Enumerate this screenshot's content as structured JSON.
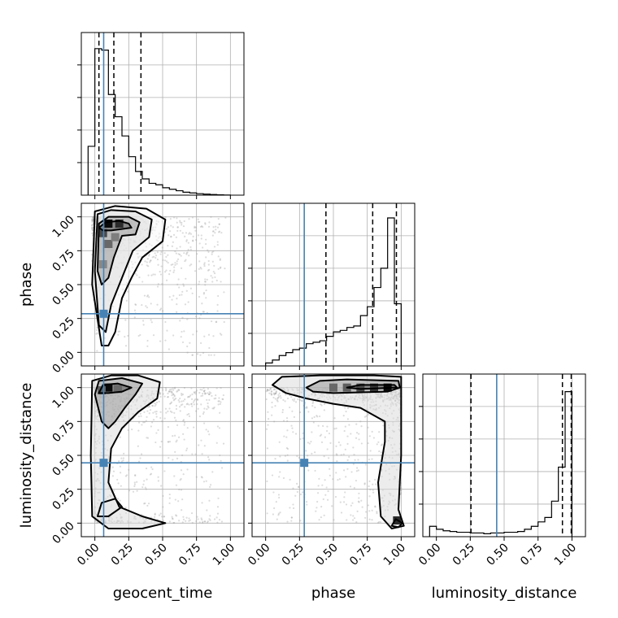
{
  "chart_data": {
    "type": "corner",
    "parameters": [
      "geocent_time",
      "phase",
      "luminosity_distance"
    ],
    "axis_range": [
      -0.1,
      1.1
    ],
    "ticks": [
      0.0,
      0.25,
      0.5,
      0.75,
      1.0
    ],
    "tick_labels": [
      "0.00",
      "0.25",
      "0.50",
      "0.75",
      "1.00"
    ],
    "grid": true,
    "colors": {
      "truth": "#4682b4",
      "line": "#000000",
      "scatter": "#9a9a9a"
    },
    "truths": {
      "geocent_time": 0.065,
      "phase": 0.285,
      "luminosity_distance": 0.445
    },
    "histograms": {
      "geocent_time": {
        "edges": [
          -0.05,
          0.0,
          0.05,
          0.1,
          0.15,
          0.2,
          0.25,
          0.3,
          0.35,
          0.4,
          0.45,
          0.5,
          0.55,
          0.6,
          0.65,
          0.7,
          0.75,
          0.8,
          0.85,
          0.9,
          0.95,
          1.0
        ],
        "heights": [
          0.33,
          0.99,
          0.98,
          0.68,
          0.53,
          0.4,
          0.26,
          0.16,
          0.11,
          0.08,
          0.07,
          0.05,
          0.04,
          0.03,
          0.02,
          0.015,
          0.01,
          0.007,
          0.004,
          0.002,
          0.001
        ],
        "quantiles": [
          0.03,
          0.14,
          0.34
        ]
      },
      "phase": {
        "edges": [
          0.0,
          0.05,
          0.1,
          0.15,
          0.2,
          0.25,
          0.3,
          0.35,
          0.4,
          0.45,
          0.5,
          0.55,
          0.6,
          0.65,
          0.7,
          0.75,
          0.8,
          0.85,
          0.9,
          0.95,
          1.0
        ],
        "heights": [
          0.02,
          0.04,
          0.07,
          0.09,
          0.11,
          0.12,
          0.15,
          0.16,
          0.17,
          0.2,
          0.23,
          0.24,
          0.26,
          0.27,
          0.34,
          0.4,
          0.53,
          0.66,
          1.0,
          0.42
        ],
        "quantiles": [
          0.445,
          0.79,
          0.965
        ]
      },
      "luminosity_distance": {
        "edges": [
          -0.05,
          0.0,
          0.05,
          0.1,
          0.15,
          0.2,
          0.25,
          0.3,
          0.35,
          0.4,
          0.45,
          0.5,
          0.55,
          0.6,
          0.65,
          0.7,
          0.75,
          0.8,
          0.85,
          0.9,
          0.95,
          1.0
        ],
        "heights": [
          0.07,
          0.05,
          0.04,
          0.035,
          0.03,
          0.03,
          0.025,
          0.025,
          0.02,
          0.025,
          0.025,
          0.03,
          0.03,
          0.035,
          0.05,
          0.07,
          0.1,
          0.13,
          0.24,
          0.47,
          0.98
        ],
        "quantiles": [
          0.255,
          0.93,
          0.995
        ]
      }
    },
    "contours": {
      "phase_vs_geocent_time": [
        [
          [
            0.03,
            0.92
          ],
          [
            0.08,
            0.96
          ],
          [
            0.18,
            0.97
          ],
          [
            0.25,
            0.95
          ],
          [
            0.27,
            0.92
          ],
          [
            0.2,
            0.91
          ],
          [
            0.12,
            0.9
          ],
          [
            0.06,
            0.9
          ]
        ],
        [
          [
            0.02,
            0.6
          ],
          [
            0.03,
            0.95
          ],
          [
            0.1,
            1.0
          ],
          [
            0.25,
            1.0
          ],
          [
            0.33,
            0.96
          ],
          [
            0.3,
            0.87
          ],
          [
            0.2,
            0.86
          ],
          [
            0.14,
            0.7
          ],
          [
            0.1,
            0.55
          ],
          [
            0.05,
            0.5
          ]
        ],
        [
          [
            0.03,
            0.2
          ],
          [
            0.0,
            0.6
          ],
          [
            0.02,
            1.02
          ],
          [
            0.12,
            1.05
          ],
          [
            0.3,
            1.04
          ],
          [
            0.42,
            0.98
          ],
          [
            0.4,
            0.85
          ],
          [
            0.28,
            0.75
          ],
          [
            0.2,
            0.55
          ],
          [
            0.12,
            0.35
          ],
          [
            0.08,
            0.15
          ]
        ],
        [
          [
            0.05,
            0.05
          ],
          [
            -0.02,
            0.5
          ],
          [
            0.0,
            1.04
          ],
          [
            0.15,
            1.08
          ],
          [
            0.38,
            1.06
          ],
          [
            0.52,
            0.98
          ],
          [
            0.5,
            0.82
          ],
          [
            0.35,
            0.7
          ],
          [
            0.27,
            0.55
          ],
          [
            0.2,
            0.4
          ],
          [
            0.15,
            0.15
          ],
          [
            0.1,
            0.05
          ]
        ]
      ],
      "luminosity_distance_vs_geocent_time": [
        [
          [
            0.03,
            0.96
          ],
          [
            0.06,
            1.02
          ],
          [
            0.17,
            1.03
          ],
          [
            0.27,
            1.0
          ],
          [
            0.2,
            0.97
          ],
          [
            0.1,
            0.96
          ]
        ],
        [
          [
            0.0,
            0.95
          ],
          [
            0.03,
            1.05
          ],
          [
            0.2,
            1.07
          ],
          [
            0.35,
            1.03
          ],
          [
            0.3,
            0.95
          ],
          [
            0.22,
            0.85
          ],
          [
            0.15,
            0.75
          ],
          [
            0.1,
            0.7
          ],
          [
            0.05,
            0.75
          ]
        ],
        [
          [
            -0.02,
            0.05
          ],
          [
            -0.03,
            0.5
          ],
          [
            -0.02,
            1.05
          ],
          [
            0.12,
            1.09
          ],
          [
            0.32,
            1.09
          ],
          [
            0.48,
            1.04
          ],
          [
            0.46,
            0.92
          ],
          [
            0.32,
            0.82
          ],
          [
            0.2,
            0.7
          ],
          [
            0.12,
            0.55
          ],
          [
            0.1,
            0.3
          ],
          [
            0.18,
            0.12
          ],
          [
            0.35,
            0.05
          ],
          [
            0.52,
            0.0
          ],
          [
            0.35,
            -0.04
          ],
          [
            0.1,
            -0.04
          ]
        ],
        [
          [
            0.02,
            0.05
          ],
          [
            0.05,
            0.15
          ],
          [
            0.15,
            0.18
          ],
          [
            0.2,
            0.12
          ],
          [
            0.1,
            0.05
          ]
        ]
      ],
      "luminosity_distance_vs_phase": [
        [
          [
            0.6,
            1.0
          ],
          [
            0.7,
            1.02
          ],
          [
            0.95,
            1.02
          ],
          [
            0.97,
            1.0
          ],
          [
            0.7,
            0.99
          ]
        ],
        [
          [
            0.3,
            1.0
          ],
          [
            0.4,
            1.05
          ],
          [
            0.6,
            1.06
          ],
          [
            0.98,
            1.05
          ],
          [
            0.99,
            1.0
          ],
          [
            0.9,
            0.97
          ],
          [
            0.5,
            0.96
          ],
          [
            0.35,
            0.97
          ]
        ],
        [
          [
            0.05,
            1.02
          ],
          [
            0.12,
            1.08
          ],
          [
            0.4,
            1.09
          ],
          [
            0.8,
            1.09
          ],
          [
            1.0,
            1.08
          ],
          [
            1.0,
            0.5
          ],
          [
            0.98,
            0.1
          ],
          [
            1.02,
            -0.02
          ],
          [
            0.93,
            -0.04
          ],
          [
            0.85,
            0.05
          ],
          [
            0.83,
            0.3
          ],
          [
            0.88,
            0.6
          ],
          [
            0.88,
            0.75
          ],
          [
            0.7,
            0.85
          ],
          [
            0.5,
            0.88
          ],
          [
            0.3,
            0.92
          ],
          [
            0.15,
            0.96
          ]
        ],
        [
          [
            0.93,
            -0.02
          ],
          [
            0.96,
            0.03
          ],
          [
            1.01,
            0.0
          ],
          [
            0.98,
            -0.03
          ]
        ]
      ]
    },
    "density_peaks": {
      "phase_vs_geocent_time": [
        [
          0.1,
          0.95,
          1.0
        ],
        [
          0.18,
          0.95,
          0.85
        ],
        [
          0.06,
          0.88,
          0.7
        ],
        [
          0.1,
          0.8,
          0.55
        ],
        [
          0.06,
          0.65,
          0.4
        ],
        [
          0.15,
          0.85,
          0.45
        ]
      ],
      "luminosity_distance_vs_geocent_time": [
        [
          0.1,
          1.0,
          1.0
        ],
        [
          0.05,
          0.98,
          0.6
        ],
        [
          0.17,
          0.99,
          0.55
        ]
      ],
      "luminosity_distance_vs_phase": [
        [
          0.9,
          1.0,
          1.0
        ],
        [
          0.8,
          1.0,
          0.8
        ],
        [
          0.7,
          1.0,
          0.7
        ],
        [
          0.6,
          1.0,
          0.6
        ],
        [
          0.5,
          1.0,
          0.55
        ],
        [
          0.97,
          0.02,
          0.85
        ]
      ]
    }
  }
}
